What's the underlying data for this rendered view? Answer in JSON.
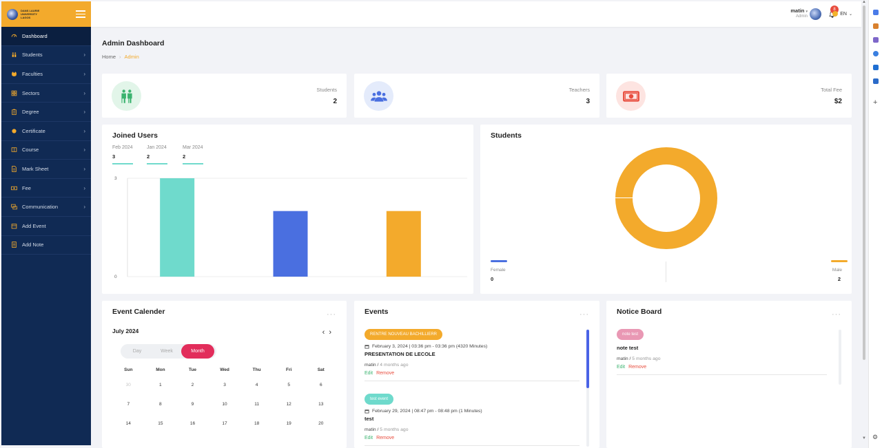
{
  "brand": {
    "logo_text": "DANS LAURIE UNIVERSITY LAGOS"
  },
  "sidebar": {
    "items": [
      {
        "label": "Dashboard",
        "icon": "gauge-icon",
        "active": true,
        "has_children": false
      },
      {
        "label": "Students",
        "icon": "users-icon",
        "active": false,
        "has_children": true
      },
      {
        "label": "Faculties",
        "icon": "cat-icon",
        "active": false,
        "has_children": true
      },
      {
        "label": "Sectors",
        "icon": "grid-icon",
        "active": false,
        "has_children": true
      },
      {
        "label": "Degree",
        "icon": "clipboard-icon",
        "active": false,
        "has_children": true
      },
      {
        "label": "Certificate",
        "icon": "certificate-icon",
        "active": false,
        "has_children": true
      },
      {
        "label": "Course",
        "icon": "book-icon",
        "active": false,
        "has_children": true
      },
      {
        "label": "Mark Sheet",
        "icon": "file-icon",
        "active": false,
        "has_children": true
      },
      {
        "label": "Fee",
        "icon": "money-icon",
        "active": false,
        "has_children": true
      },
      {
        "label": "Communication",
        "icon": "chat-icon",
        "active": false,
        "has_children": true
      },
      {
        "label": "Add Event",
        "icon": "calendar-icon",
        "active": false,
        "has_children": false
      },
      {
        "label": "Add Note",
        "icon": "note-icon",
        "active": false,
        "has_children": false
      }
    ]
  },
  "header": {
    "user_name": "matin",
    "user_role": "Admin",
    "notification_count": "8",
    "language": "EN"
  },
  "page": {
    "title": "Admin Dashboard",
    "breadcrumb": {
      "home": "Home",
      "current": "Admin"
    }
  },
  "stats": [
    {
      "label": "Students",
      "value": "2",
      "icon": "students-icon",
      "color": "#3bb36f",
      "bg": "#e2f5e9"
    },
    {
      "label": "Teachers",
      "value": "3",
      "icon": "teachers-icon",
      "color": "#4a6fe0",
      "bg": "#e4ebfb"
    },
    {
      "label": "Total Fee",
      "value": "$2",
      "icon": "money-bill-icon",
      "color": "#e84c3d",
      "bg": "#fde4e1"
    }
  ],
  "joined_users": {
    "title": "Joined Users",
    "summary": [
      {
        "month": "Feb 2024",
        "count": "3"
      },
      {
        "month": "Jan 2024",
        "count": "2"
      },
      {
        "month": "Mar 2024",
        "count": "2"
      }
    ]
  },
  "students_card": {
    "title": "Students",
    "legend": [
      {
        "label": "Female",
        "value": "0",
        "color": "#4a6fe0"
      },
      {
        "label": "Male",
        "value": "2",
        "color": "#f3aa2c"
      }
    ]
  },
  "chart_data": [
    {
      "type": "bar",
      "categories": [
        "Feb 2024",
        "Jan 2024",
        "Mar 2024"
      ],
      "values": [
        3,
        2,
        2
      ],
      "colors": [
        "#6fdacc",
        "#4a6fe0",
        "#f3aa2c"
      ],
      "title": "",
      "xlabel": "",
      "ylabel": "",
      "ylim": [
        0,
        3
      ],
      "yticks": [
        "3",
        "0"
      ],
      "grid": true
    },
    {
      "type": "pie",
      "donut": true,
      "categories": [
        "Female",
        "Male"
      ],
      "values": [
        0,
        2
      ],
      "colors": [
        "#4a6fe0",
        "#f3aa2c"
      ]
    }
  ],
  "calendar": {
    "title": "Event Calender",
    "month_label": "July 2024",
    "views": [
      "Day",
      "Week",
      "Month"
    ],
    "active_view": "Month",
    "weekdays": [
      "Sun",
      "Mon",
      "Tue",
      "Wed",
      "Thu",
      "Fri",
      "Sat"
    ],
    "weeks": [
      [
        {
          "d": "30",
          "m": true
        },
        {
          "d": "1"
        },
        {
          "d": "2"
        },
        {
          "d": "3"
        },
        {
          "d": "4"
        },
        {
          "d": "5"
        },
        {
          "d": "6"
        }
      ],
      [
        {
          "d": "7"
        },
        {
          "d": "8"
        },
        {
          "d": "9"
        },
        {
          "d": "10"
        },
        {
          "d": "11"
        },
        {
          "d": "12"
        },
        {
          "d": "13"
        }
      ],
      [
        {
          "d": "14"
        },
        {
          "d": "15"
        },
        {
          "d": "16"
        },
        {
          "d": "17"
        },
        {
          "d": "18"
        },
        {
          "d": "19"
        },
        {
          "d": "20"
        }
      ]
    ]
  },
  "events": {
    "title": "Events",
    "items": [
      {
        "badge": "RENTRE NOUVEAU BACHILLIERR",
        "badge_color": "#f3aa2c",
        "date": "February 3, 2024 | 03:36 pm - 03:36 pm (4320 Minutes)",
        "title": "PRESENTATION DE LECOLE",
        "author": "matin",
        "ago": "4 months ago",
        "edit": "Edit",
        "remove": "Remove"
      },
      {
        "badge": "test event",
        "badge_color": "#6fdacc",
        "date": "February 29, 2024 | 08:47 pm - 08:48 pm (1 Minutes)",
        "title": "test",
        "author": "matin",
        "ago": "5 months ago",
        "edit": "Edit",
        "remove": "Remove"
      }
    ]
  },
  "notice_board": {
    "title": "Notice Board",
    "items": [
      {
        "badge": "note test",
        "badge_color": "#e998b4",
        "title": "note test",
        "author": "matin",
        "ago": "5 months ago",
        "edit": "Edit",
        "remove": "Remove"
      }
    ]
  }
}
